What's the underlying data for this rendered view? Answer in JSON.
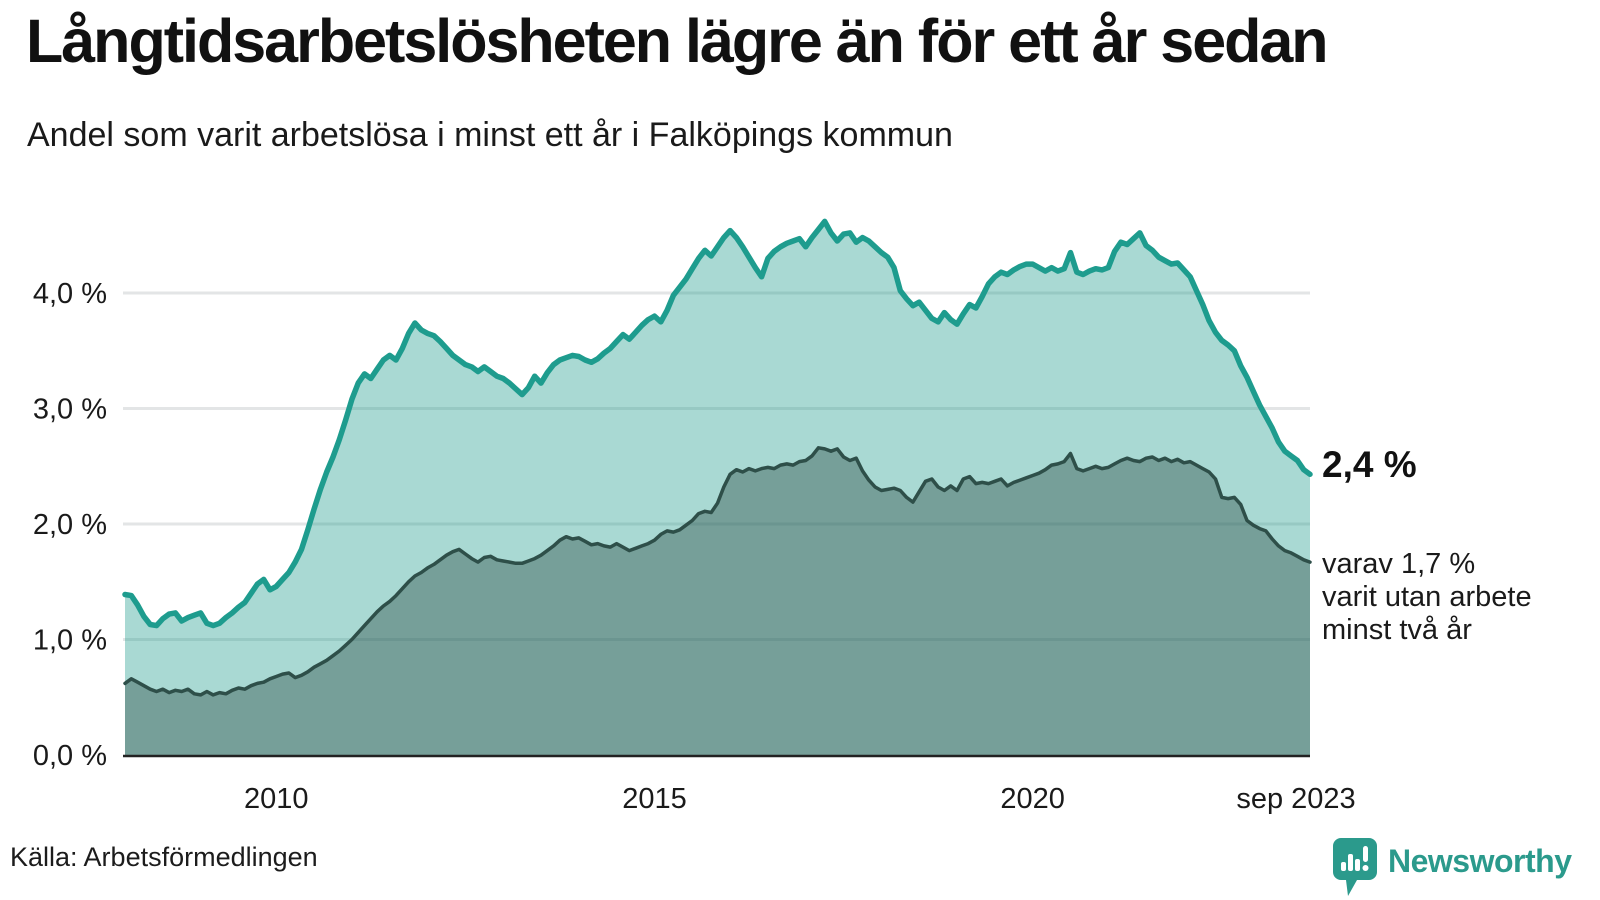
{
  "header": {
    "title": "Långtidsarbetslösheten lägre än för ett år sedan",
    "subtitle": "Andel som varit arbetslösa i minst ett år i Falköpings kommun"
  },
  "chart_data": {
    "type": "area",
    "title": "Långtidsarbetslösheten lägre än för ett år sedan",
    "frequency": "monthly",
    "x_start": "2008-01",
    "x_end": "2023-09",
    "ylim": [
      0,
      4.8
    ],
    "grid": true,
    "legend_position": "none",
    "y_ticks": [
      {
        "value": 0,
        "label": "0,0 %"
      },
      {
        "value": 1,
        "label": "1,0 %"
      },
      {
        "value": 2,
        "label": "2,0 %"
      },
      {
        "value": 3,
        "label": "3,0 %"
      },
      {
        "value": 4,
        "label": "4,0 %"
      }
    ],
    "x_tick_labels": [
      {
        "label": "2010",
        "month_index": 24
      },
      {
        "label": "2015",
        "month_index": 84
      },
      {
        "label": "2020",
        "month_index": 144
      },
      {
        "label": "sep 2023",
        "month_index": 188
      }
    ],
    "colors": {
      "line_total": "#1e9c8e",
      "fill_total": "rgba(30,154,140,0.38)",
      "line_subset": "#2e4f49",
      "fill_subset": "rgba(47,79,74,0.42)",
      "gridline": "#e3e5e6",
      "axis_line": "#222222"
    },
    "series": [
      {
        "name": "Andel arbetslösa minst ett år",
        "latest_label": "2,4 %",
        "values": [
          1.39,
          1.38,
          1.3,
          1.2,
          1.13,
          1.12,
          1.18,
          1.22,
          1.23,
          1.16,
          1.19,
          1.21,
          1.23,
          1.14,
          1.12,
          1.14,
          1.19,
          1.23,
          1.28,
          1.32,
          1.4,
          1.48,
          1.52,
          1.43,
          1.46,
          1.52,
          1.58,
          1.67,
          1.78,
          1.95,
          2.13,
          2.3,
          2.45,
          2.58,
          2.73,
          2.9,
          3.08,
          3.22,
          3.3,
          3.26,
          3.34,
          3.42,
          3.46,
          3.42,
          3.52,
          3.65,
          3.74,
          3.68,
          3.65,
          3.63,
          3.58,
          3.52,
          3.46,
          3.42,
          3.38,
          3.36,
          3.32,
          3.36,
          3.32,
          3.28,
          3.26,
          3.22,
          3.17,
          3.12,
          3.18,
          3.28,
          3.22,
          3.31,
          3.38,
          3.42,
          3.44,
          3.46,
          3.45,
          3.42,
          3.4,
          3.43,
          3.48,
          3.52,
          3.58,
          3.64,
          3.6,
          3.66,
          3.72,
          3.77,
          3.8,
          3.75,
          3.85,
          3.98,
          4.05,
          4.12,
          4.21,
          4.3,
          4.37,
          4.32,
          4.4,
          4.48,
          4.54,
          4.48,
          4.4,
          4.31,
          4.22,
          4.14,
          4.3,
          4.36,
          4.4,
          4.43,
          4.45,
          4.47,
          4.4,
          4.48,
          4.55,
          4.62,
          4.52,
          4.45,
          4.51,
          4.52,
          4.44,
          4.48,
          4.45,
          4.4,
          4.35,
          4.31,
          4.22,
          4.02,
          3.95,
          3.89,
          3.92,
          3.85,
          3.78,
          3.75,
          3.83,
          3.77,
          3.73,
          3.82,
          3.9,
          3.87,
          3.97,
          4.08,
          4.14,
          4.18,
          4.16,
          4.2,
          4.23,
          4.25,
          4.25,
          4.22,
          4.19,
          4.22,
          4.19,
          4.21,
          4.35,
          4.18,
          4.16,
          4.19,
          4.21,
          4.2,
          4.22,
          4.36,
          4.44,
          4.42,
          4.47,
          4.52,
          4.41,
          4.37,
          4.31,
          4.28,
          4.25,
          4.26,
          4.2,
          4.14,
          4.02,
          3.9,
          3.76,
          3.66,
          3.59,
          3.55,
          3.5,
          3.37,
          3.27,
          3.15,
          3.03,
          2.93,
          2.83,
          2.71,
          2.63,
          2.59,
          2.55,
          2.47,
          2.43
        ]
      },
      {
        "name": "Andel arbetslösa minst två år",
        "latest_label": "1,7 %",
        "values": [
          0.62,
          0.66,
          0.63,
          0.6,
          0.57,
          0.55,
          0.57,
          0.54,
          0.56,
          0.55,
          0.57,
          0.53,
          0.52,
          0.55,
          0.52,
          0.54,
          0.53,
          0.56,
          0.58,
          0.57,
          0.6,
          0.62,
          0.63,
          0.66,
          0.68,
          0.7,
          0.71,
          0.67,
          0.69,
          0.72,
          0.76,
          0.79,
          0.82,
          0.86,
          0.9,
          0.95,
          1.0,
          1.06,
          1.12,
          1.18,
          1.24,
          1.29,
          1.33,
          1.38,
          1.44,
          1.5,
          1.55,
          1.58,
          1.62,
          1.65,
          1.69,
          1.73,
          1.76,
          1.78,
          1.74,
          1.7,
          1.67,
          1.71,
          1.72,
          1.69,
          1.68,
          1.67,
          1.66,
          1.66,
          1.68,
          1.7,
          1.73,
          1.77,
          1.81,
          1.86,
          1.89,
          1.87,
          1.88,
          1.85,
          1.82,
          1.83,
          1.81,
          1.8,
          1.83,
          1.8,
          1.77,
          1.79,
          1.81,
          1.83,
          1.86,
          1.91,
          1.94,
          1.93,
          1.95,
          1.99,
          2.03,
          2.09,
          2.11,
          2.1,
          2.18,
          2.32,
          2.43,
          2.47,
          2.45,
          2.48,
          2.46,
          2.48,
          2.49,
          2.48,
          2.51,
          2.52,
          2.51,
          2.54,
          2.55,
          2.59,
          2.66,
          2.65,
          2.63,
          2.65,
          2.58,
          2.55,
          2.57,
          2.46,
          2.38,
          2.32,
          2.29,
          2.3,
          2.31,
          2.29,
          2.23,
          2.19,
          2.28,
          2.37,
          2.39,
          2.32,
          2.29,
          2.33,
          2.29,
          2.39,
          2.41,
          2.35,
          2.36,
          2.35,
          2.37,
          2.39,
          2.33,
          2.36,
          2.38,
          2.4,
          2.42,
          2.44,
          2.47,
          2.51,
          2.52,
          2.54,
          2.61,
          2.48,
          2.46,
          2.48,
          2.5,
          2.48,
          2.49,
          2.52,
          2.55,
          2.57,
          2.55,
          2.54,
          2.57,
          2.58,
          2.55,
          2.57,
          2.54,
          2.56,
          2.53,
          2.54,
          2.51,
          2.48,
          2.45,
          2.39,
          2.23,
          2.22,
          2.23,
          2.17,
          2.03,
          1.99,
          1.96,
          1.94,
          1.87,
          1.81,
          1.77,
          1.75,
          1.72,
          1.69,
          1.67
        ]
      }
    ]
  },
  "annotations": {
    "latest_value": "2,4 %",
    "subset_lines": [
      "varav 1,7 %",
      "varit utan arbete",
      "minst två år"
    ]
  },
  "footer": {
    "source": "Källa: Arbetsförmedlingen",
    "logo_text": "Newsworthy",
    "logo_color": "#2b9a8c"
  }
}
